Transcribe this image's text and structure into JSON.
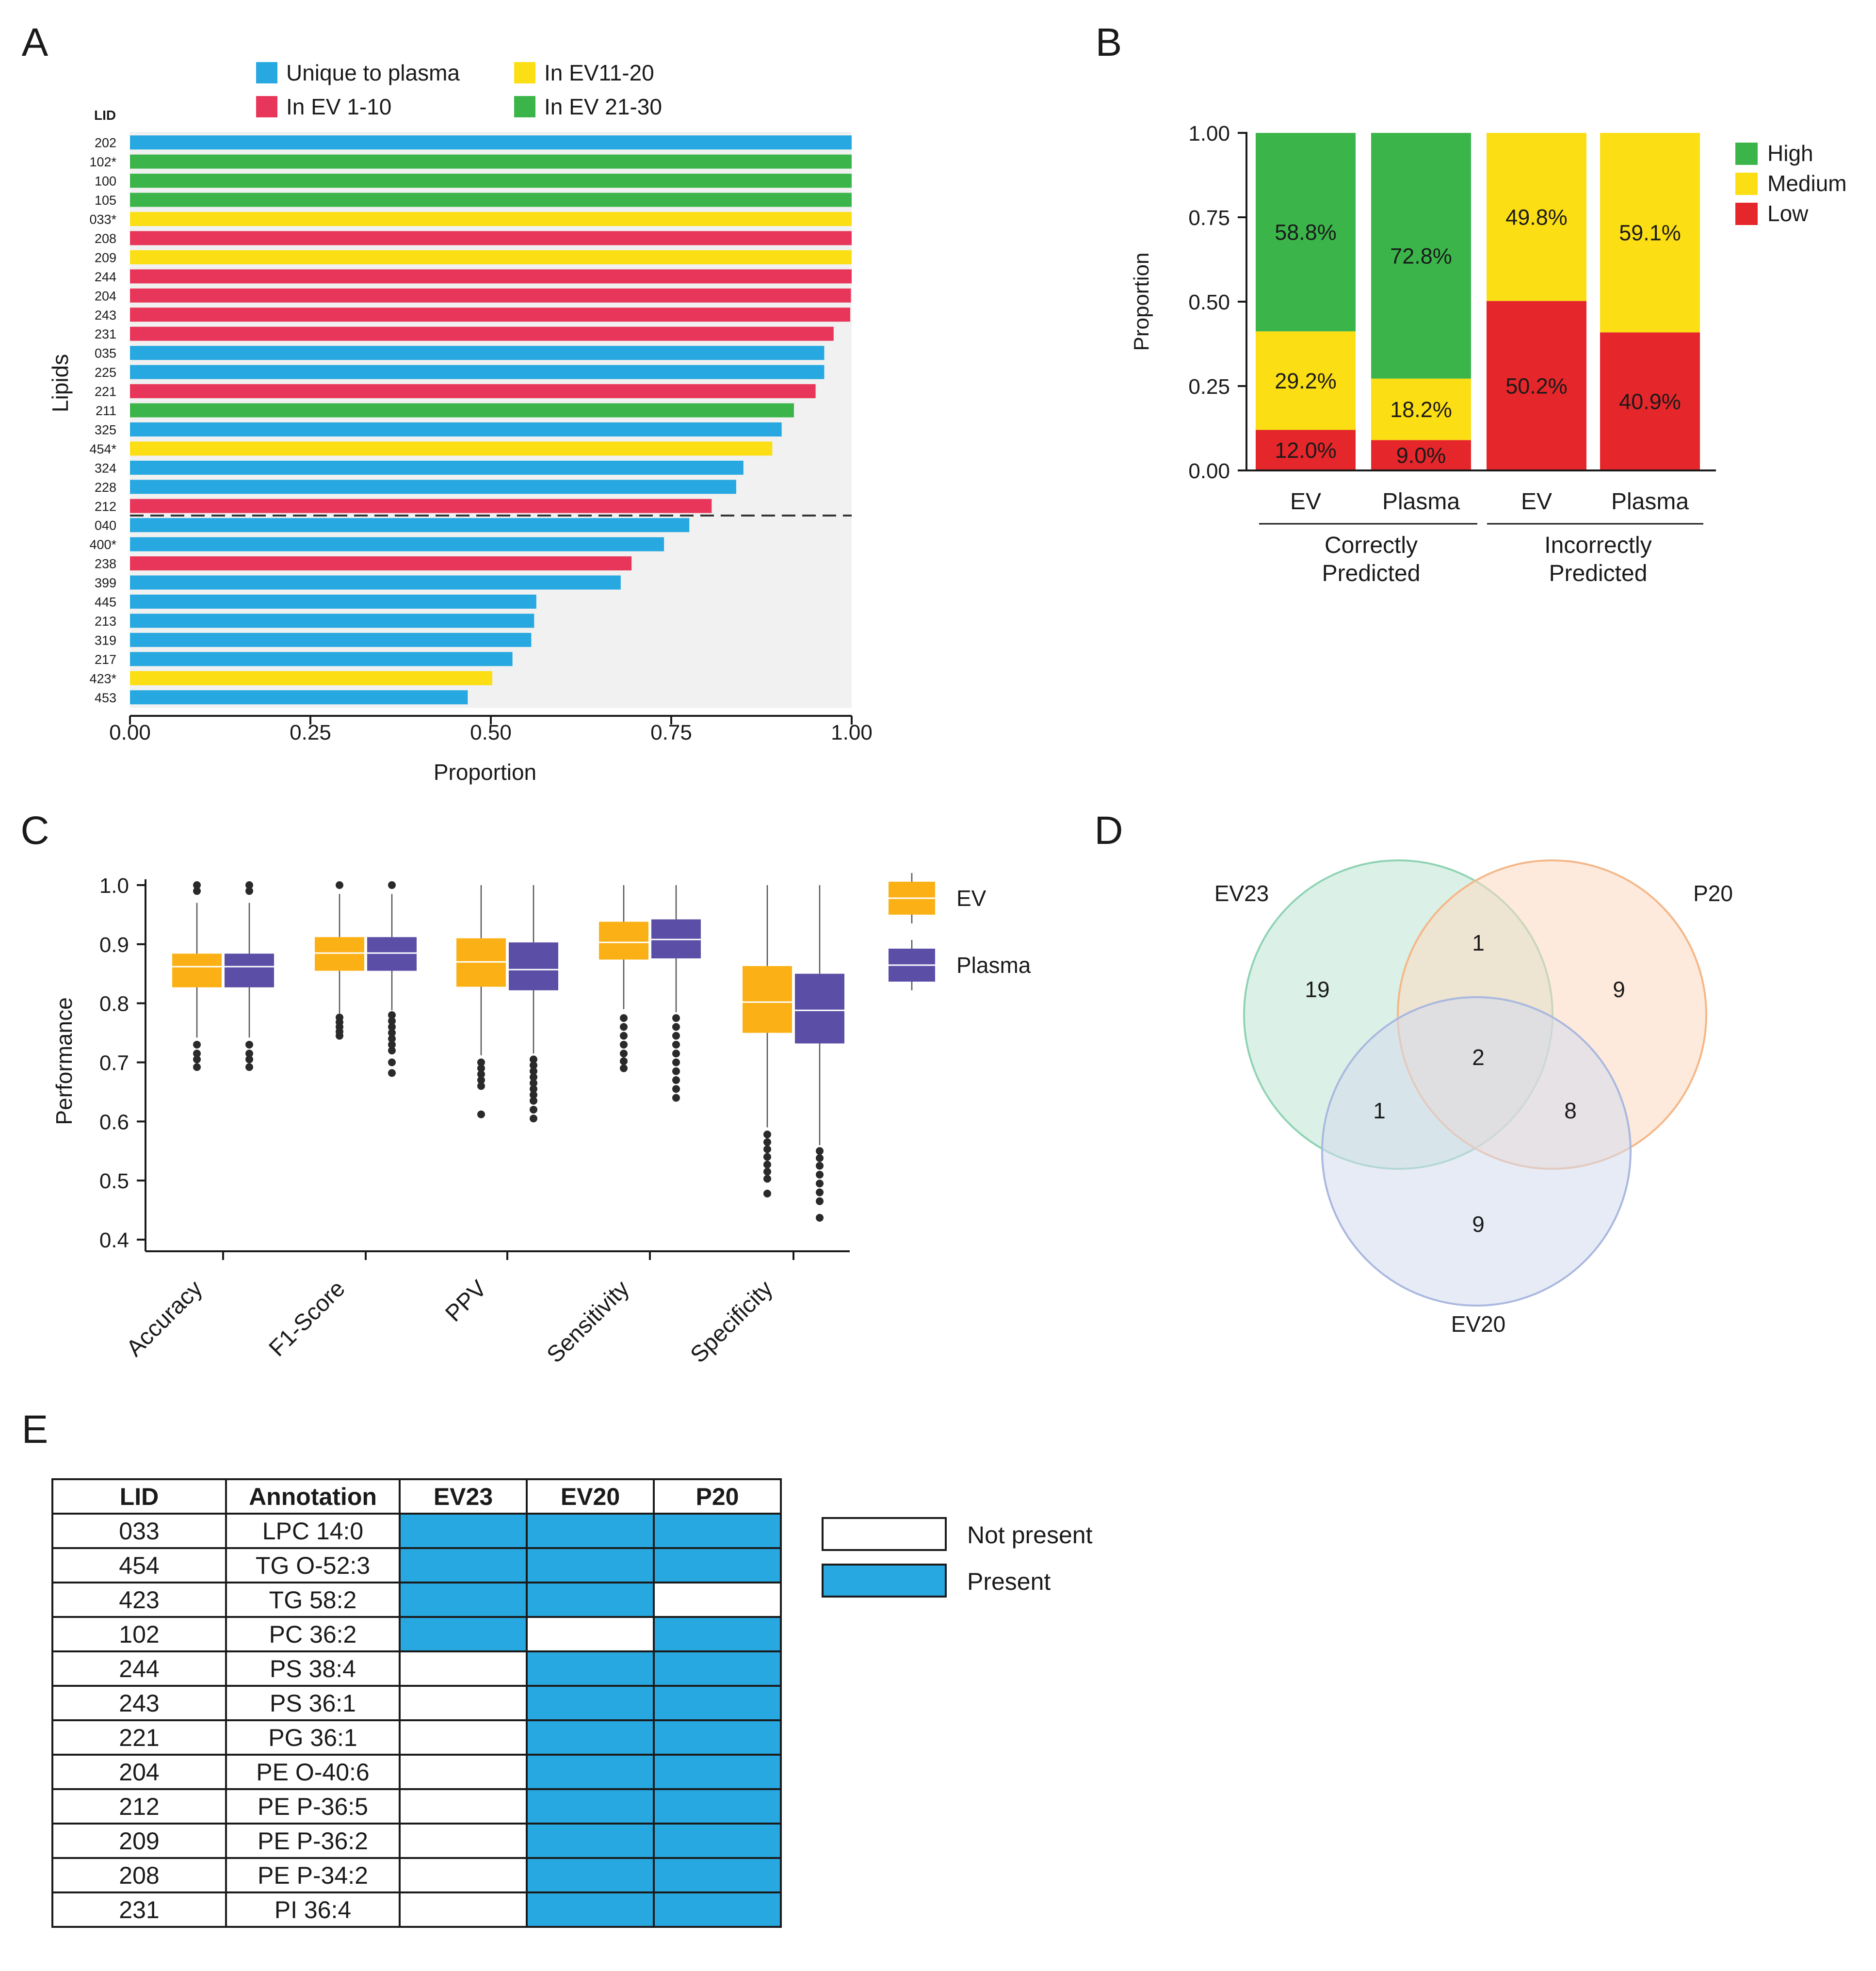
{
  "panel_labels": [
    "A",
    "B",
    "C",
    "D",
    "E"
  ],
  "chart_data": [
    {
      "panel": "A",
      "type": "bar",
      "orientation": "horizontal",
      "xlabel": "Proportion",
      "ylabel": "Lipids",
      "y_header": "LID",
      "xlim": [
        0,
        1
      ],
      "xticks": [
        "0.00",
        "0.25",
        "0.50",
        "0.75",
        "1.00"
      ],
      "legend": [
        {
          "key": "plasma",
          "label": "Unique to plasma",
          "color": "#27a8e0"
        },
        {
          "key": "ev1",
          "label": "In EV 1-10",
          "color": "#e8365a"
        },
        {
          "key": "ev11",
          "label": "In EV11-20",
          "color": "#fbde14"
        },
        {
          "key": "ev21",
          "label": "In EV 21-30",
          "color": "#3bb54a"
        }
      ],
      "cutoff_after_index": 19,
      "categories": [
        "202",
        "102*",
        "100",
        "105",
        "033*",
        "208",
        "209",
        "244",
        "204",
        "243",
        "231",
        "035",
        "225",
        "221",
        "211",
        "325",
        "454*",
        "324",
        "228",
        "212",
        "040",
        "400*",
        "238",
        "399",
        "445",
        "213",
        "319",
        "217",
        "423*",
        "453"
      ],
      "values": [
        1.0,
        1.0,
        1.0,
        1.0,
        1.0,
        1.0,
        1.0,
        1.0,
        0.999,
        0.998,
        0.975,
        0.962,
        0.962,
        0.95,
        0.92,
        0.903,
        0.89,
        0.85,
        0.84,
        0.806,
        0.775,
        0.74,
        0.695,
        0.68,
        0.563,
        0.56,
        0.556,
        0.53,
        0.502,
        0.468
      ],
      "groups": [
        "plasma",
        "ev21",
        "ev21",
        "ev21",
        "ev11",
        "ev1",
        "ev11",
        "ev1",
        "ev1",
        "ev1",
        "ev1",
        "plasma",
        "plasma",
        "ev1",
        "ev21",
        "plasma",
        "ev11",
        "plasma",
        "plasma",
        "ev1",
        "plasma",
        "plasma",
        "ev1",
        "plasma",
        "plasma",
        "plasma",
        "plasma",
        "plasma",
        "ev11",
        "plasma"
      ]
    },
    {
      "panel": "B",
      "type": "bar",
      "stacked": true,
      "ylabel": "Proportion",
      "ylim": [
        0,
        1
      ],
      "yticks": [
        "0.00",
        "0.25",
        "0.50",
        "0.75",
        "1.00"
      ],
      "categories": [
        "EV",
        "Plasma",
        "EV",
        "Plasma"
      ],
      "groups": [
        {
          "label": "Correctly Predicted",
          "lines": [
            "Correctly",
            "Predicted"
          ]
        },
        {
          "label": "Incorrectly Predicted",
          "lines": [
            "Incorrectly",
            "Predicted"
          ]
        }
      ],
      "series": [
        {
          "name": "Low",
          "color": "#e5262a",
          "values": [
            0.12,
            0.09,
            0.502,
            0.409
          ],
          "labels": [
            "12.0%",
            "9.0%",
            "50.2%",
            "40.9%"
          ]
        },
        {
          "name": "Medium",
          "color": "#fbde14",
          "values": [
            0.292,
            0.182,
            0.498,
            0.591
          ],
          "labels": [
            "29.2%",
            "18.2%",
            "49.8%",
            "59.1%"
          ]
        },
        {
          "name": "High",
          "color": "#3bb54a",
          "values": [
            0.588,
            0.728,
            0.0,
            0.0
          ],
          "labels": [
            "58.8%",
            "72.8%",
            "",
            ""
          ]
        }
      ],
      "legend_order": [
        "High",
        "Medium",
        "Low"
      ]
    },
    {
      "panel": "C",
      "type": "box",
      "ylabel": "Performance",
      "ylim": [
        0.4,
        1.0
      ],
      "yticks": [
        "0.4",
        "0.5",
        "0.6",
        "0.7",
        "0.8",
        "0.9",
        "1.0"
      ],
      "categories": [
        "Accuracy",
        "F1-Score",
        "PPV",
        "Sensitivity",
        "Specificity"
      ],
      "series": [
        {
          "name": "EV",
          "color": "#fbb116",
          "boxes": [
            {
              "q1": 0.827,
              "median": 0.862,
              "q3": 0.884,
              "wlo": 0.742,
              "whi": 0.97,
              "outliers": [
                1.0,
                0.99,
                0.73,
                0.715,
                0.705,
                0.692
              ]
            },
            {
              "q1": 0.855,
              "median": 0.885,
              "q3": 0.912,
              "wlo": 0.783,
              "whi": 0.985,
              "outliers": [
                1.0,
                0.776,
                0.768,
                0.76,
                0.752,
                0.745
              ]
            },
            {
              "q1": 0.828,
              "median": 0.87,
              "q3": 0.91,
              "wlo": 0.712,
              "whi": 1.0,
              "outliers": [
                0.7,
                0.69,
                0.68,
                0.67,
                0.66,
                0.612
              ]
            },
            {
              "q1": 0.874,
              "median": 0.903,
              "q3": 0.938,
              "wlo": 0.79,
              "whi": 1.0,
              "outliers": [
                0.775,
                0.76,
                0.745,
                0.73,
                0.715,
                0.702,
                0.69
              ]
            },
            {
              "q1": 0.75,
              "median": 0.802,
              "q3": 0.863,
              "wlo": 0.59,
              "whi": 1.0,
              "outliers": [
                0.578,
                0.565,
                0.553,
                0.54,
                0.527,
                0.515,
                0.503,
                0.478
              ]
            }
          ]
        },
        {
          "name": "Plasma",
          "color": "#5a4ea6",
          "boxes": [
            {
              "q1": 0.827,
              "median": 0.862,
              "q3": 0.884,
              "wlo": 0.742,
              "whi": 0.97,
              "outliers": [
                1.0,
                0.99,
                0.73,
                0.715,
                0.705,
                0.692
              ]
            },
            {
              "q1": 0.855,
              "median": 0.885,
              "q3": 0.912,
              "wlo": 0.788,
              "whi": 0.985,
              "outliers": [
                1.0,
                0.78,
                0.77,
                0.76,
                0.75,
                0.74,
                0.73,
                0.72,
                0.7,
                0.682
              ]
            },
            {
              "q1": 0.822,
              "median": 0.857,
              "q3": 0.903,
              "wlo": 0.715,
              "whi": 1.0,
              "outliers": [
                0.705,
                0.695,
                0.685,
                0.675,
                0.665,
                0.655,
                0.645,
                0.635,
                0.62,
                0.605
              ]
            },
            {
              "q1": 0.876,
              "median": 0.908,
              "q3": 0.942,
              "wlo": 0.785,
              "whi": 1.0,
              "outliers": [
                0.775,
                0.76,
                0.745,
                0.73,
                0.715,
                0.7,
                0.685,
                0.67,
                0.655,
                0.64
              ]
            },
            {
              "q1": 0.732,
              "median": 0.788,
              "q3": 0.85,
              "wlo": 0.56,
              "whi": 1.0,
              "outliers": [
                0.55,
                0.538,
                0.525,
                0.51,
                0.495,
                0.48,
                0.465,
                0.437
              ]
            }
          ]
        }
      ]
    },
    {
      "panel": "D",
      "type": "venn",
      "sets": [
        {
          "name": "EV23",
          "color": "#bde6d4",
          "stroke": "#8fd3b4"
        },
        {
          "name": "P20",
          "color": "#fbd8bf",
          "stroke": "#f4b788"
        },
        {
          "name": "EV20",
          "color": "#d3dbef",
          "stroke": "#aab8df"
        }
      ],
      "regions": {
        "EV23_only": "19",
        "P20_only": "9",
        "EV20_only": "9",
        "EV23_P20": "1",
        "EV23_EV20": "1",
        "P20_EV20": "8",
        "all": "2"
      }
    }
  ],
  "table": {
    "headers": [
      "LID",
      "Annotation",
      "EV23",
      "EV20",
      "P20"
    ],
    "rows": [
      {
        "lid": "033",
        "annotation": "LPC 14:0",
        "ev23": true,
        "ev20": true,
        "p20": true
      },
      {
        "lid": "454",
        "annotation": "TG O-52:3",
        "ev23": true,
        "ev20": true,
        "p20": true
      },
      {
        "lid": "423",
        "annotation": "TG 58:2",
        "ev23": true,
        "ev20": true,
        "p20": false
      },
      {
        "lid": "102",
        "annotation": "PC 36:2",
        "ev23": true,
        "ev20": false,
        "p20": true
      },
      {
        "lid": "244",
        "annotation": "PS 38:4",
        "ev23": false,
        "ev20": true,
        "p20": true
      },
      {
        "lid": "243",
        "annotation": "PS 36:1",
        "ev23": false,
        "ev20": true,
        "p20": true
      },
      {
        "lid": "221",
        "annotation": "PG 36:1",
        "ev23": false,
        "ev20": true,
        "p20": true
      },
      {
        "lid": "204",
        "annotation": "PE O-40:6",
        "ev23": false,
        "ev20": true,
        "p20": true
      },
      {
        "lid": "212",
        "annotation": "PE P-36:5",
        "ev23": false,
        "ev20": true,
        "p20": true
      },
      {
        "lid": "209",
        "annotation": "PE P-36:2",
        "ev23": false,
        "ev20": true,
        "p20": true
      },
      {
        "lid": "208",
        "annotation": "PE P-34:2",
        "ev23": false,
        "ev20": true,
        "p20": true
      },
      {
        "lid": "231",
        "annotation": "PI 36:4",
        "ev23": false,
        "ev20": true,
        "p20": true
      }
    ],
    "legend": [
      {
        "label": "Not present",
        "color": "#ffffff"
      },
      {
        "label": "Present",
        "color": "#27a8e0"
      }
    ]
  }
}
